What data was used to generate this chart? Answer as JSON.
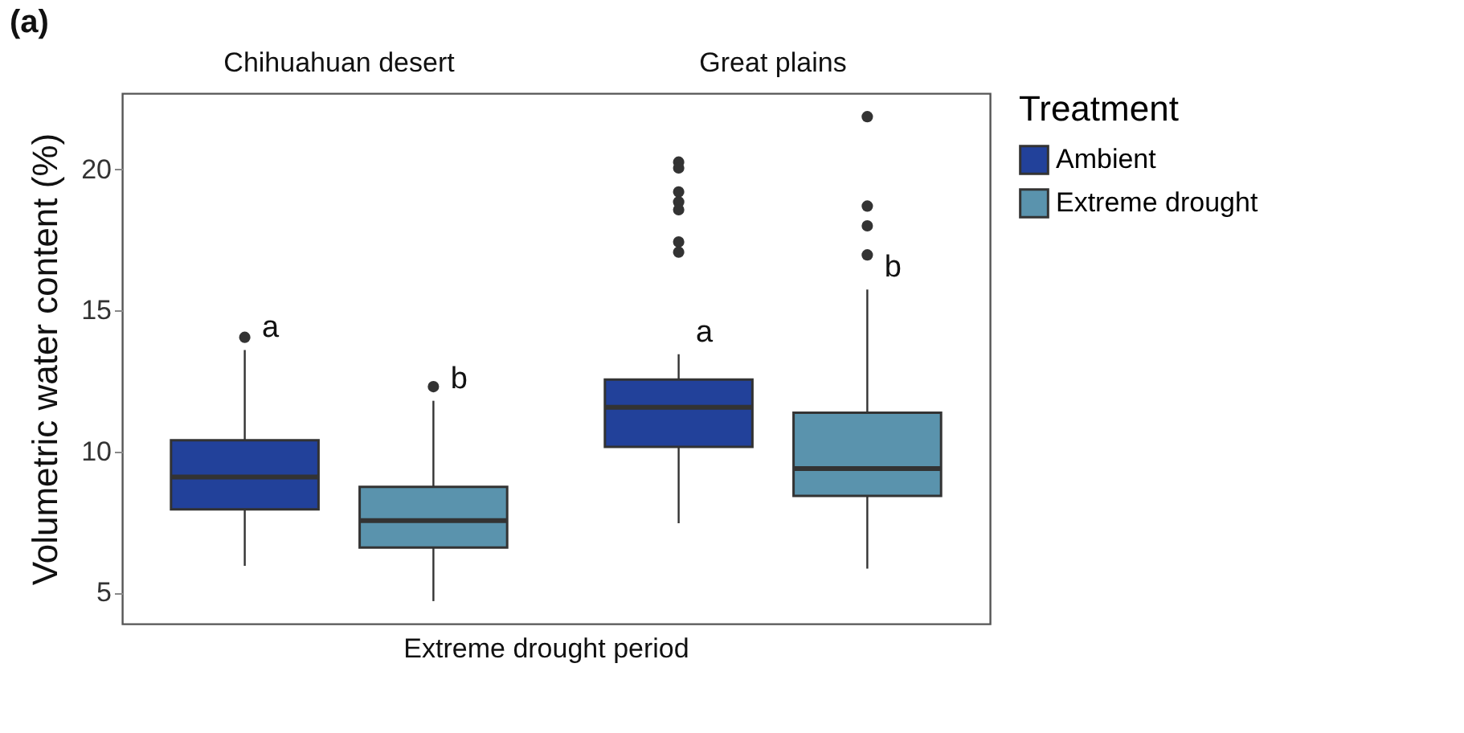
{
  "chart_data": {
    "type": "box",
    "title": "(a)",
    "xlabel": "Extreme drought period",
    "ylabel": "Volumetric water content (%)",
    "legend_title": "Treatment",
    "legend": "right",
    "grid": false,
    "ylim": [
      3.9,
      22.7
    ],
    "yticks": [
      5,
      10,
      15,
      20
    ],
    "categories": [
      "Chihuahuan desert",
      "Great plains"
    ],
    "series": [
      {
        "name": "Ambient",
        "color": "#22419a",
        "boxes": [
          {
            "low": 5.95,
            "q1": 7.95,
            "median": 9.1,
            "q3": 10.4,
            "high": 13.6,
            "outliers": [
              14.05
            ]
          },
          {
            "low": 7.46,
            "q1": 10.17,
            "median": 11.57,
            "q3": 12.55,
            "high": 13.45,
            "outliers": [
              20.26,
              20.05,
              19.2,
              18.85,
              18.57,
              17.43,
              17.07
            ]
          }
        ]
      },
      {
        "name": "Extreme drought",
        "color": "#5a93ad",
        "boxes": [
          {
            "low": 4.7,
            "q1": 6.6,
            "median": 7.55,
            "q3": 8.75,
            "high": 11.8,
            "outliers": [
              12.3
            ]
          },
          {
            "low": 5.85,
            "q1": 8.43,
            "median": 9.4,
            "q3": 11.38,
            "high": 15.74,
            "outliers": [
              21.87,
              18.7,
              18.0,
              16.97
            ]
          }
        ]
      }
    ],
    "annotations": [
      "a",
      "b",
      "a",
      "b"
    ]
  }
}
